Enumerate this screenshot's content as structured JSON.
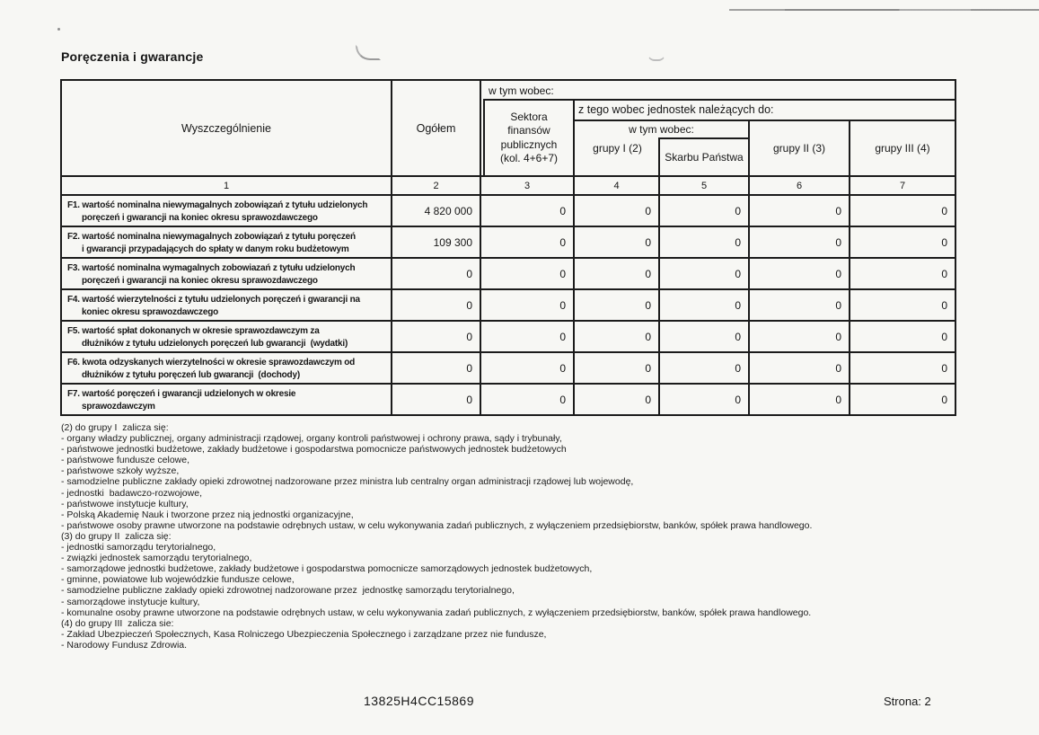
{
  "document": {
    "title": "Poręczenia i gwarancje",
    "footer": {
      "code": "13825H4CC15869",
      "page": "Strona: 2"
    }
  },
  "table": {
    "headers": {
      "wyszczegolnienie": "Wyszczególnienie",
      "ogolem": "Ogółem",
      "w_tym_wobec_1": "w tym wobec:",
      "sektora_finansow": "Sektora\nfinansów\npublicznych\n(kol. 4+6+7)",
      "z_tego_wobec": "z tego wobec jednostek należących do:",
      "w_tym_wobec_2": "w tym wobec:",
      "grupy_I": "grupy I (2)",
      "skarbu_panstwa": "Skarbu Państwa",
      "grupy_II": "grupy II (3)",
      "grupy_III": "grupy III (4)"
    },
    "column_numbers": [
      "1",
      "2",
      "3",
      "4",
      "5",
      "6",
      "7"
    ],
    "rows": [
      {
        "label": "F1. wartość nominalna niewymagalnych zobowiązań z tytułu udzielonych\nporęczeń i gwarancji na koniec okresu sprawozdawczego",
        "values": [
          "4 820 000",
          "0",
          "0",
          "0",
          "0",
          "0"
        ]
      },
      {
        "label": "F2. wartość nominalna niewymagalnych zobowiązań z tytułu poręczeń\ni gwarancji przypadających do spłaty w danym roku budżetowym",
        "values": [
          "109 300",
          "0",
          "0",
          "0",
          "0",
          "0"
        ]
      },
      {
        "label": "F3. wartość nominalna wymagalnych zobowiazań z tytułu udzielonych\nporęczeń i gwarancji na koniec okresu sprawozdawczego",
        "values": [
          "0",
          "0",
          "0",
          "0",
          "0",
          "0"
        ]
      },
      {
        "label": "F4. wartość wierzytelności z tytułu udzielonych poręczeń i gwarancji na\nkoniec okresu sprawozdawczego",
        "values": [
          "0",
          "0",
          "0",
          "0",
          "0",
          "0"
        ]
      },
      {
        "label": "F5. wartość spłat dokonanych w okresie sprawozdawczym za\ndłużników z tytułu udzielonych poręczeń lub gwarancji  (wydatki)",
        "values": [
          "0",
          "0",
          "0",
          "0",
          "0",
          "0"
        ]
      },
      {
        "label": "F6. kwota odzyskanych wierzytelności w okresie sprawozdawczym od\ndłużników z tytułu poręczeń lub gwarancji  (dochody)",
        "values": [
          "0",
          "0",
          "0",
          "0",
          "0",
          "0"
        ]
      },
      {
        "label": "F7. wartość poręczeń i gwarancji udzielonych w okresie\nsprawozdawczym",
        "values": [
          "0",
          "0",
          "0",
          "0",
          "0",
          "0"
        ]
      }
    ]
  },
  "footnotes": {
    "lines": [
      "(2) do grupy I  zalicza się:",
      "- organy władzy publicznej, organy administracji rządowej, organy kontroli państwowej i ochrony prawa, sądy i trybunały,",
      "- państwowe jednostki budżetowe, zakłady budżetowe i gospodarstwa pomocnicze państwowych jednostek budżetowych",
      "- państwowe fundusze celowe,",
      "- państwowe szkoły wyższe,",
      "- samodzielne publiczne zakłady opieki zdrowotnej nadzorowane przez ministra lub centralny organ administracji rządowej lub wojewodę,",
      "- jednostki  badawczo-rozwojowe,",
      "- państwowe instytucje kultury,",
      "- Polską Akademię Nauk i tworzone przez nią jednostki organizacyjne,",
      "- państwowe osoby prawne utworzone na podstawie odrębnych ustaw, w celu wykonywania zadań publicznych, z wyłączeniem przedsiębiorstw, banków, spółek prawa handlowego.",
      "(3) do grupy II  zalicza się:",
      "- jednostki samorządu terytorialnego,",
      "- związki jednostek samorządu terytorialnego,",
      "- samorządowe jednostki budżetowe, zakłady budżetowe i gospodarstwa pomocnicze samorządowych jednostek budżetowych,",
      "- gminne, powiatowe lub wojewódzkie fundusze celowe,",
      "- samodzielne publiczne zakłady opieki zdrowotnej nadzorowane przez  jednostkę samorządu terytorialnego,",
      "- samorządowe instytucje kultury,",
      "- komunalne osoby prawne utworzone na podstawie odrębnych ustaw, w celu wykonywania zadań publicznych, z wyłączeniem przedsiębiorstw, banków, spółek prawa handlowego.",
      "(4) do grupy III  zalicza sie:",
      "- Zakład Ubezpieczeń Społecznych, Kasa Rolniczego Ubezpieczenia Społecznego i zarządzane przez nie fundusze,",
      "- Narodowy Fundusz Zdrowia."
    ]
  }
}
